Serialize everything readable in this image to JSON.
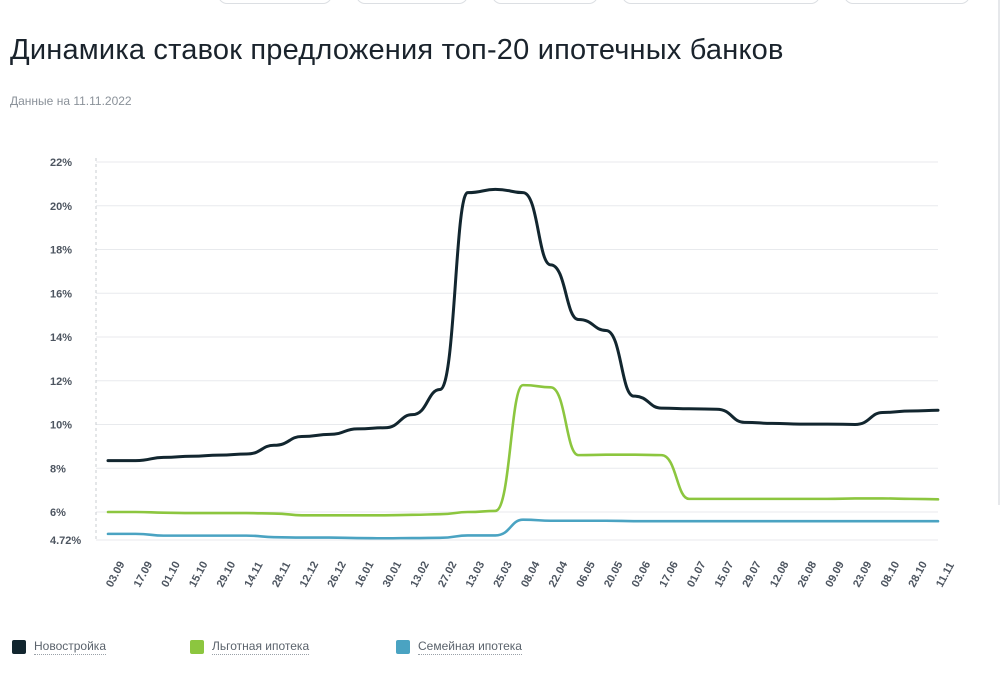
{
  "page": {
    "title": "Динамика ставок предложения топ-20 ипотечных банков",
    "subtitle": "Данные на 11.11.2022"
  },
  "chart_data": {
    "type": "line",
    "title": "Динамика ставок предложения топ-20 ипотечных банков",
    "xlabel": "",
    "ylabel": "",
    "x": [
      "03.09",
      "17.09",
      "01.10",
      "15.10",
      "29.10",
      "14.11",
      "28.11",
      "12.12",
      "26.12",
      "16.01",
      "30.01",
      "13.02",
      "27.02",
      "13.03",
      "25.03",
      "08.04",
      "22.04",
      "06.05",
      "20.05",
      "03.06",
      "17.06",
      "01.07",
      "15.07",
      "29.07",
      "12.08",
      "26.08",
      "09.09",
      "23.09",
      "08.10",
      "28.10",
      "11.11"
    ],
    "ylim": [
      4.72,
      22
    ],
    "yticks": [
      "22%",
      "20%",
      "18%",
      "16%",
      "14%",
      "12%",
      "10%",
      "8%",
      "6%",
      "4.72%"
    ],
    "ytick_values": [
      22,
      20,
      18,
      16,
      14,
      12,
      10,
      8,
      6,
      4.72
    ],
    "grid": true,
    "legend_position": "bottom-left",
    "series": [
      {
        "name": "Новостройка",
        "color": "#12262f",
        "values": [
          8.35,
          8.35,
          8.5,
          8.55,
          8.6,
          8.65,
          9.05,
          9.45,
          9.55,
          9.8,
          9.85,
          10.45,
          11.6,
          20.6,
          20.75,
          20.6,
          17.3,
          14.8,
          14.3,
          11.3,
          10.75,
          10.72,
          10.7,
          10.1,
          10.05,
          10.02,
          10.02,
          10.0,
          10.55,
          10.62,
          10.65
        ]
      },
      {
        "name": "Льготная ипотека",
        "color": "#8cc63f",
        "values": [
          6.0,
          6.0,
          5.97,
          5.95,
          5.95,
          5.95,
          5.93,
          5.85,
          5.85,
          5.85,
          5.85,
          5.87,
          5.9,
          6.0,
          6.05,
          11.8,
          11.7,
          8.6,
          8.62,
          8.62,
          8.6,
          6.6,
          6.6,
          6.6,
          6.6,
          6.6,
          6.6,
          6.62,
          6.62,
          6.6,
          6.58
        ]
      },
      {
        "name": "Семейная ипотека",
        "color": "#4aa3c2",
        "values": [
          5.0,
          5.0,
          4.92,
          4.92,
          4.92,
          4.92,
          4.85,
          4.83,
          4.83,
          4.81,
          4.8,
          4.81,
          4.82,
          4.93,
          4.93,
          5.65,
          5.6,
          5.6,
          5.6,
          5.58,
          5.58,
          5.58,
          5.58,
          5.58,
          5.58,
          5.58,
          5.58,
          5.58,
          5.58,
          5.58,
          5.58
        ]
      }
    ]
  },
  "legend": [
    {
      "label": "Новостройка",
      "color": "#12262f"
    },
    {
      "label": "Льготная ипотека",
      "color": "#8cc63f"
    },
    {
      "label": "Семейная ипотека",
      "color": "#4aa3c2"
    }
  ]
}
